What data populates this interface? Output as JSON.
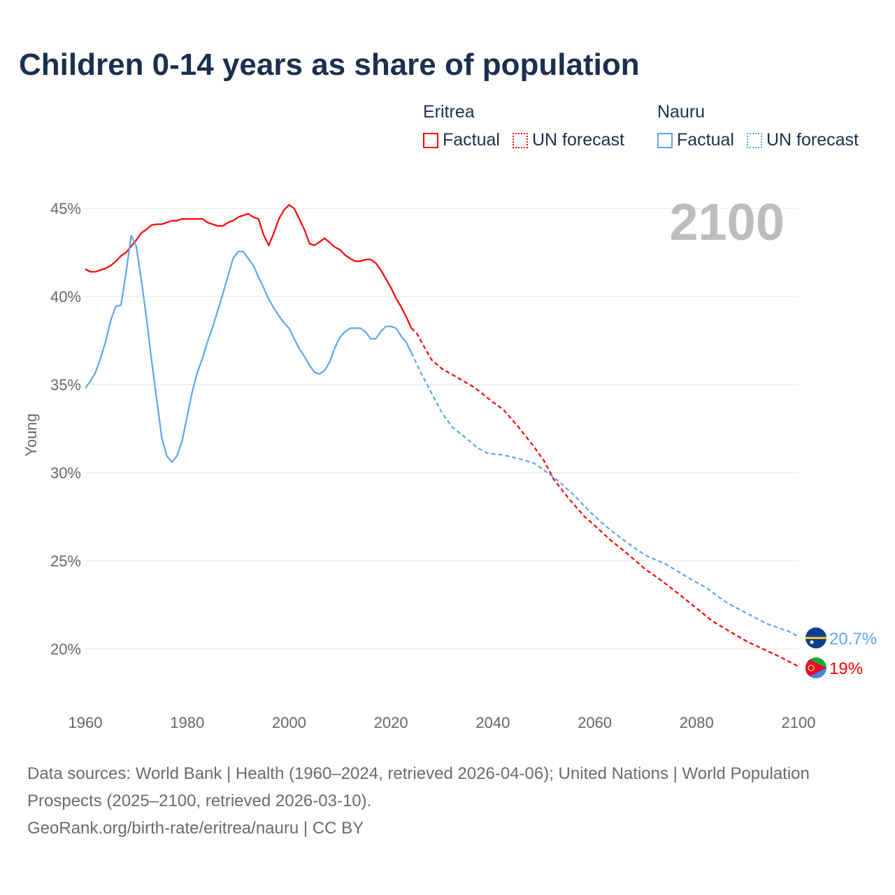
{
  "title": "Children 0-14 years as share of population",
  "legend": [
    {
      "country": "Eritrea",
      "color": "#ff0000",
      "factual_label": "Factual",
      "forecast_label": "UN forecast"
    },
    {
      "country": "Nauru",
      "color": "#5aa7ee",
      "factual_label": "Factual",
      "forecast_label": "UN forecast"
    }
  ],
  "year_display": "2100",
  "footer": {
    "sources": "Data sources: World Bank | Health (1960–2024, retrieved 2026-04-06); United Nations | World Population Prospects (2025–2100, retrieved 2026-03-10).",
    "link": "GeoRank.org/birth-rate/eritrea/nauru | CC BY"
  },
  "chart_data": {
    "type": "line",
    "title": "Children 0-14 years as share of population",
    "xlabel": "",
    "ylabel": "Young",
    "xlim": [
      1960,
      2100
    ],
    "ylim": [
      18,
      46
    ],
    "x_ticks": [
      "1960",
      "1980",
      "2000",
      "2020",
      "2040",
      "2060",
      "2080",
      "2100"
    ],
    "x_tick_values": [
      1960,
      1980,
      2000,
      2020,
      2040,
      2060,
      2080,
      2100
    ],
    "y_ticks": [
      "20%",
      "25%",
      "30%",
      "35%",
      "40%",
      "45%"
    ],
    "y_tick_values": [
      20,
      25,
      30,
      35,
      40,
      45
    ],
    "grid": true,
    "series": [
      {
        "name": "Eritrea",
        "color": "#ff0000",
        "end_label": "19%",
        "factual": {
          "x": [
            1960,
            1961,
            1962,
            1963,
            1964,
            1965,
            1966,
            1967,
            1968,
            1969,
            1970,
            1971,
            1972,
            1973,
            1974,
            1975,
            1976,
            1977,
            1978,
            1979,
            1980,
            1981,
            1982,
            1983,
            1984,
            1985,
            1986,
            1987,
            1988,
            1989,
            1990,
            1991,
            1992,
            1993,
            1994,
            1995,
            1996,
            1997,
            1998,
            1999,
            2000,
            2001,
            2002,
            2003,
            2004,
            2005,
            2006,
            2007,
            2008,
            2009,
            2010,
            2011,
            2012,
            2013,
            2014,
            2015,
            2016,
            2017,
            2018,
            2019,
            2020,
            2021,
            2022,
            2023,
            2024
          ],
          "y": [
            41.55,
            41.4,
            41.4,
            41.5,
            41.6,
            41.75,
            42.0,
            42.3,
            42.5,
            42.85,
            43.2,
            43.6,
            43.8,
            44.05,
            44.1,
            44.1,
            44.2,
            44.3,
            44.3,
            44.4,
            44.4,
            44.4,
            44.4,
            44.4,
            44.2,
            44.1,
            44.0,
            44.0,
            44.2,
            44.3,
            44.5,
            44.6,
            44.7,
            44.5,
            44.4,
            43.5,
            42.9,
            43.6,
            44.4,
            44.9,
            45.2,
            45.0,
            44.4,
            43.8,
            43.0,
            42.9,
            43.1,
            43.3,
            43.05,
            42.8,
            42.65,
            42.35,
            42.15,
            42.0,
            42.0,
            42.1,
            42.1,
            41.9,
            41.5,
            41.0,
            40.5,
            39.9,
            39.4,
            38.85,
            38.2
          ]
        },
        "forecast": {
          "x": [
            2024,
            2025,
            2026,
            2028,
            2030,
            2033,
            2036,
            2037,
            2040,
            2042,
            2045,
            2048,
            2050,
            2052,
            2055,
            2058,
            2060,
            2063,
            2066,
            2070,
            2073,
            2077,
            2080,
            2083,
            2087,
            2090,
            2093,
            2096,
            2100
          ],
          "y": [
            38.2,
            37.95,
            37.4,
            36.4,
            35.9,
            35.4,
            34.9,
            34.7,
            34.0,
            33.6,
            32.6,
            31.5,
            30.7,
            29.6,
            28.5,
            27.5,
            27.0,
            26.2,
            25.5,
            24.5,
            23.9,
            23.0,
            22.3,
            21.6,
            20.9,
            20.4,
            20.0,
            19.6,
            19.0
          ]
        }
      },
      {
        "name": "Nauru",
        "color": "#5aa7ee",
        "end_label": "20.7%",
        "factual": {
          "x": [
            1960,
            1961,
            1962,
            1963,
            1964,
            1965,
            1966,
            1967,
            1968,
            1969,
            1970,
            1971,
            1972,
            1973,
            1974,
            1975,
            1976,
            1977,
            1978,
            1979,
            1980,
            1981,
            1982,
            1983,
            1984,
            1985,
            1986,
            1987,
            1988,
            1989,
            1990,
            1991,
            1992,
            1993,
            1994,
            1995,
            1996,
            1997,
            1998,
            1999,
            2000,
            2001,
            2002,
            2003,
            2004,
            2005,
            2006,
            2007,
            2008,
            2009,
            2010,
            2011,
            2012,
            2013,
            2014,
            2015,
            2016,
            2017,
            2018,
            2019,
            2020,
            2021,
            2022,
            2023,
            2024
          ],
          "y": [
            34.8,
            35.2,
            35.7,
            36.5,
            37.45,
            38.65,
            39.45,
            39.5,
            41.35,
            43.45,
            42.85,
            40.95,
            38.8,
            36.4,
            34.2,
            32.0,
            30.95,
            30.6,
            30.95,
            31.8,
            33.2,
            34.6,
            35.7,
            36.5,
            37.45,
            38.25,
            39.2,
            40.15,
            41.15,
            42.15,
            42.55,
            42.55,
            42.15,
            41.75,
            41.1,
            40.5,
            39.85,
            39.35,
            38.9,
            38.5,
            38.2,
            37.6,
            37.05,
            36.6,
            36.1,
            35.7,
            35.6,
            35.8,
            36.3,
            37.1,
            37.7,
            38.0,
            38.2,
            38.2,
            38.2,
            38.0,
            37.6,
            37.6,
            38.0,
            38.3,
            38.3,
            38.2,
            37.75,
            37.4,
            36.8
          ]
        },
        "forecast": {
          "x": [
            2024,
            2026,
            2028,
            2030,
            2032,
            2035,
            2037,
            2039,
            2042,
            2045,
            2048,
            2050,
            2053,
            2056,
            2059,
            2062,
            2066,
            2070,
            2074,
            2078,
            2082,
            2086,
            2090,
            2094,
            2098,
            2100
          ],
          "y": [
            36.8,
            35.6,
            34.5,
            33.4,
            32.6,
            31.9,
            31.4,
            31.1,
            31.0,
            30.8,
            30.55,
            30.15,
            29.5,
            28.7,
            27.8,
            27.0,
            26.1,
            25.3,
            24.8,
            24.1,
            23.45,
            22.6,
            22.0,
            21.4,
            21.0,
            20.7
          ]
        }
      }
    ]
  }
}
